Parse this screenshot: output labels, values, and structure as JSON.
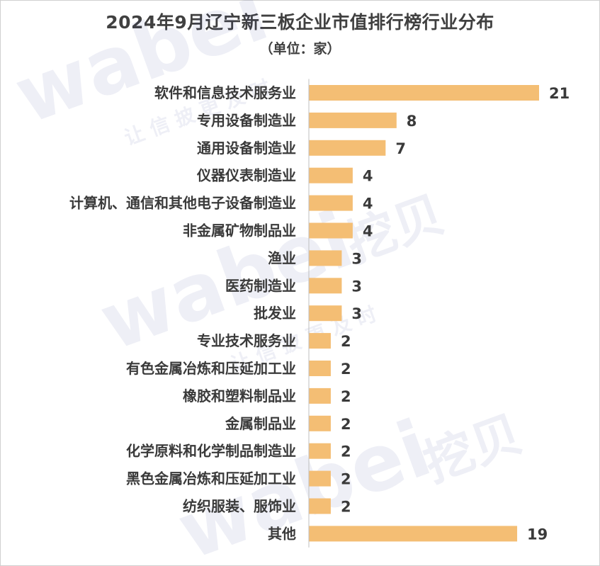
{
  "title": "2024年9月辽宁新三板企业市值排行榜行业分布",
  "subtitle": "（单位：家）",
  "watermark": {
    "brand": "wabei",
    "brand_cn": "挖贝",
    "slogan": "让 信 披 更 及 时"
  },
  "colors": {
    "bar": "#F4BE74",
    "axis": "#bfbfbf",
    "text": "#3a3a3a"
  },
  "chart_data": {
    "type": "bar",
    "orientation": "horizontal",
    "title": "2024年9月辽宁新三板企业市值排行榜行业分布",
    "subtitle": "（单位：家）",
    "xlabel": "",
    "ylabel": "",
    "xlim": [
      0,
      21
    ],
    "grid": false,
    "legend": "none",
    "categories": [
      "软件和信息技术服务业",
      "专用设备制造业",
      "通用设备制造业",
      "仪器仪表制造业",
      "计算机、通信和其他电子设备制造业",
      "非金属矿物制品业",
      "渔业",
      "医药制造业",
      "批发业",
      "专业技术服务业",
      "有色金属冶炼和压延加工业",
      "橡胶和塑料制品业",
      "金属制品业",
      "化学原料和化学制品制造业",
      "黑色金属冶炼和压延加工业",
      "纺织服装、服饰业",
      "其他"
    ],
    "values": [
      21,
      8,
      7,
      4,
      4,
      4,
      3,
      3,
      3,
      2,
      2,
      2,
      2,
      2,
      2,
      2,
      19
    ]
  }
}
